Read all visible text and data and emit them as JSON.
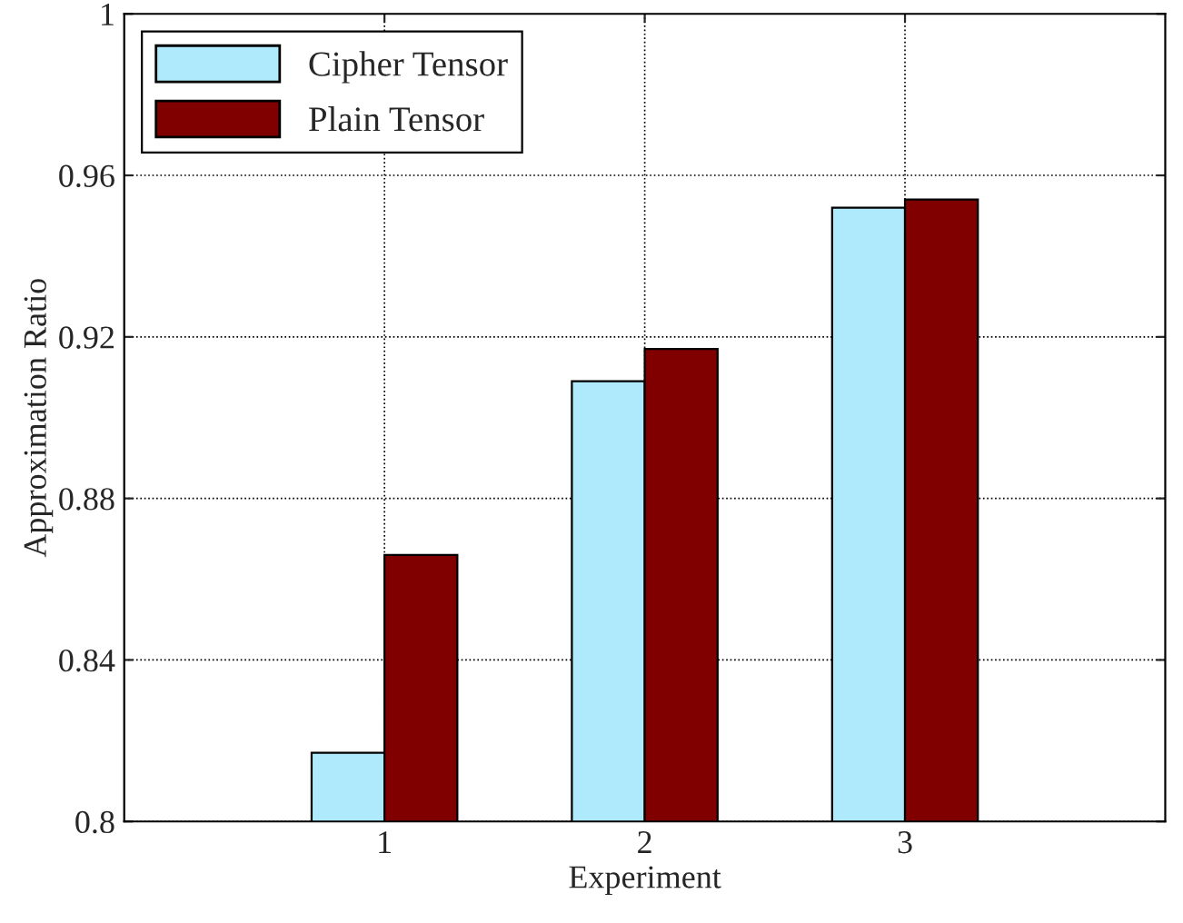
{
  "chart_data": {
    "type": "bar",
    "xlabel": "Experiment",
    "ylabel": "Approximation Ratio",
    "x": [
      1,
      2,
      3
    ],
    "series": [
      {
        "name": "Cipher Tensor",
        "color": "#aeeafb",
        "values": [
          0.817,
          0.909,
          0.952
        ]
      },
      {
        "name": "Plain Tensor",
        "color": "#800000",
        "values": [
          0.866,
          0.917,
          0.954
        ]
      }
    ],
    "xlim": [
      0,
      4
    ],
    "xticks": [
      1,
      2,
      3
    ],
    "ylim": [
      0.8,
      1
    ],
    "yticks": [
      0.8,
      0.84,
      0.88,
      0.92,
      0.96,
      1
    ],
    "grid": true,
    "line_style": "dotted",
    "legend": "top left"
  }
}
